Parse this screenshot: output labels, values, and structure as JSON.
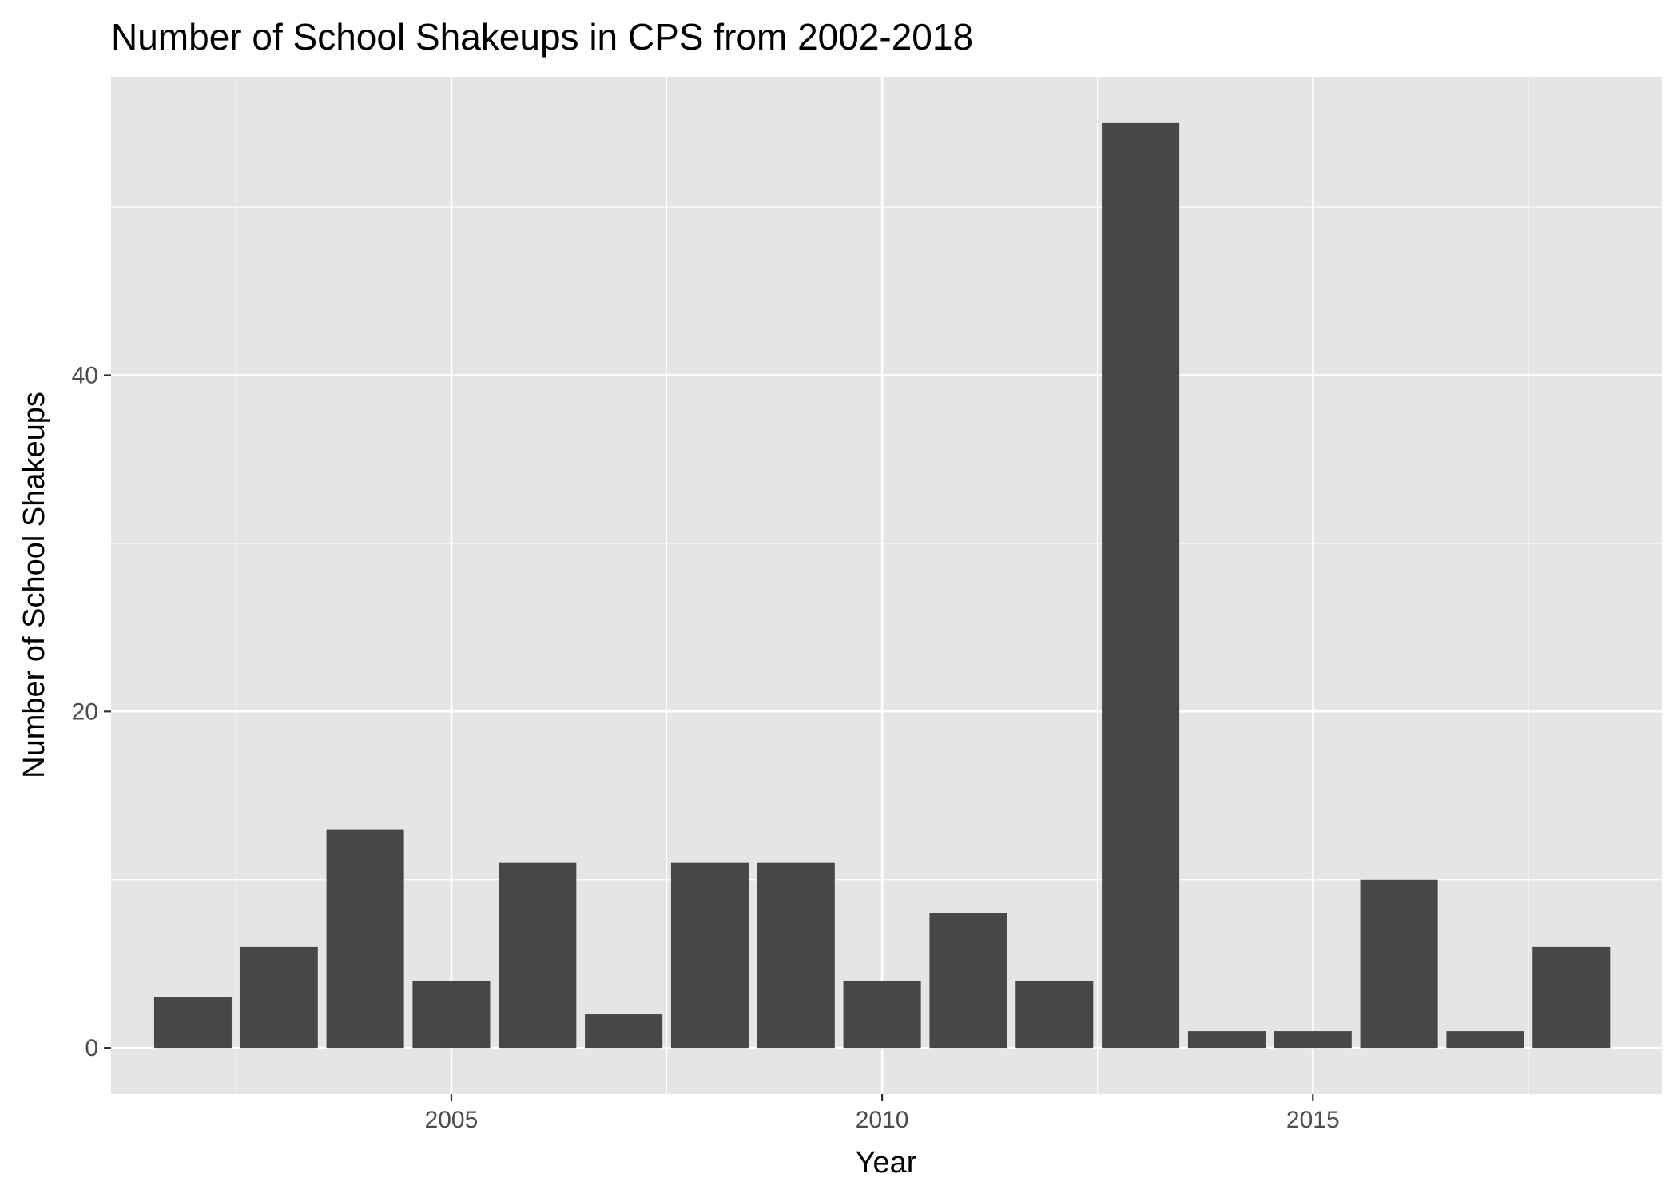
{
  "chart_data": {
    "type": "bar",
    "title": "Number of School Shakeups in CPS from 2002-2018",
    "xlabel": "Year",
    "ylabel": "Number of School Shakeups",
    "x": [
      2002,
      2003,
      2004,
      2005,
      2006,
      2007,
      2008,
      2009,
      2010,
      2011,
      2012,
      2013,
      2014,
      2015,
      2016,
      2017,
      2018
    ],
    "values": [
      3,
      6,
      13,
      4,
      11,
      2,
      11,
      11,
      4,
      8,
      4,
      55,
      1,
      1,
      10,
      1,
      6
    ],
    "xlim": [
      2001.05,
      2019.05
    ],
    "ylim": [
      -2.75,
      57.75
    ],
    "x_ticks": [
      2005,
      2010,
      2015
    ],
    "x_tick_labels": [
      "2005",
      "2010",
      "2015"
    ],
    "y_ticks": [
      0,
      20,
      40
    ],
    "y_tick_labels": [
      "0",
      "20",
      "40"
    ],
    "grid": true,
    "legend": "none",
    "colors": {
      "bar": "#474747",
      "panel": "#e5e5e5",
      "grid": "#ffffff",
      "text": "#000000",
      "tick_text": "#4d4d4d",
      "tick_mark": "#333333"
    }
  }
}
